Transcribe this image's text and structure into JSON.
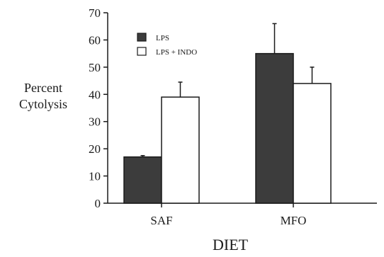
{
  "chart_data": {
    "type": "bar",
    "title": "",
    "xlabel": "DIET",
    "ylabel_lines": [
      "Percent",
      "Cytolysis"
    ],
    "ylim": [
      0,
      70
    ],
    "yticks": [
      0,
      10,
      20,
      30,
      40,
      50,
      60,
      70
    ],
    "categories": [
      "SAF",
      "MFO"
    ],
    "series": [
      {
        "name": "LPS",
        "values": [
          17,
          55
        ],
        "errors": [
          0.5,
          11
        ],
        "color": "#3c3c3c"
      },
      {
        "name": "LPS + INDO",
        "values": [
          39,
          44
        ],
        "errors": [
          5.5,
          6
        ],
        "color": "#ffffff"
      }
    ],
    "legend_position": "top-left",
    "grid": false
  }
}
